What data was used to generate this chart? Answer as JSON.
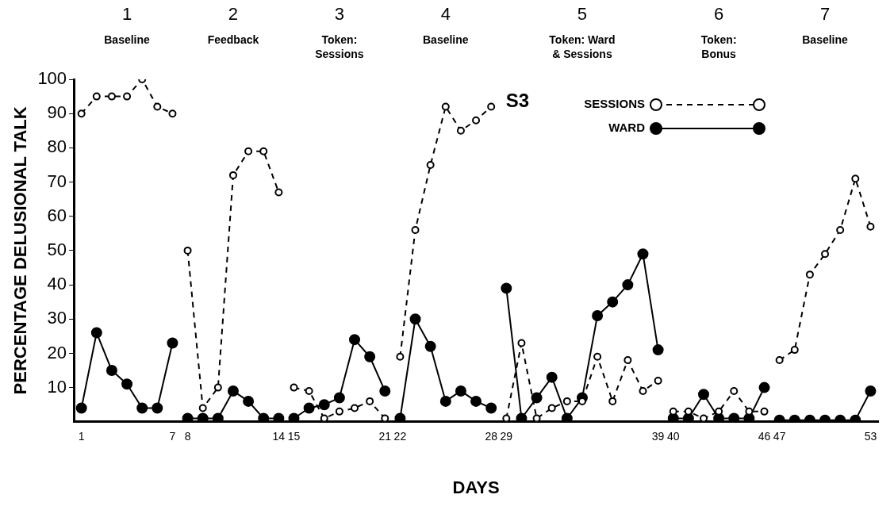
{
  "chart_data": {
    "type": "line",
    "xlabel": "DAYS",
    "ylabel": "PERCENTAGE DELUSIONAL TALK",
    "annotations": [
      "1\nBaseline",
      "2\nFeedback",
      "3\nToken:\nSessions",
      "4\nBaseline",
      "5\nToken: Ward\n& Sessions",
      "6\nToken:\nBonus",
      "7\nBaseline",
      "S3"
    ],
    "xlim": [
      0.5,
      53.5
    ],
    "xticks": [
      1,
      7,
      8,
      14,
      15,
      21,
      22,
      28,
      29,
      39,
      40,
      46,
      47,
      53
    ],
    "ylim": [
      0,
      100
    ],
    "yticks": [
      10,
      20,
      30,
      40,
      50,
      60,
      70,
      80,
      90,
      100
    ],
    "grid": false,
    "legend": "top right",
    "marker": "circle",
    "series": [
      {
        "name": "SESSIONS",
        "color": "#000000",
        "line_style": "dashed",
        "x": [
          1,
          2,
          3,
          4,
          5,
          6,
          7
        ],
        "values": [
          90,
          95,
          95,
          95,
          100,
          92,
          90
        ]
      },
      {
        "name": "WARD",
        "color": "#000000",
        "line_style": "solid",
        "x": [
          1,
          2,
          3,
          4,
          5,
          6,
          7
        ],
        "values": [
          4,
          26,
          15,
          11,
          4,
          4,
          23
        ]
      },
      {
        "color": "#000000",
        "line_style": "dashed",
        "x": [
          8,
          9,
          10,
          11,
          12,
          13,
          14
        ],
        "values": [
          50,
          4,
          10,
          72,
          79,
          79,
          67
        ]
      },
      {
        "color": "#000000",
        "line_style": "solid",
        "x": [
          8,
          9,
          10,
          11,
          12,
          13,
          14
        ],
        "values": [
          1,
          1,
          1,
          9,
          6,
          1,
          1
        ]
      },
      {
        "color": "#000000",
        "line_style": "dashed",
        "x": [
          15,
          16,
          17,
          18,
          19,
          20,
          21
        ],
        "values": [
          10,
          9,
          1,
          3,
          4,
          6,
          1
        ]
      },
      {
        "color": "#000000",
        "line_style": "solid",
        "x": [
          15,
          16,
          17,
          18,
          19,
          20,
          21
        ],
        "values": [
          1,
          4,
          5,
          7,
          24,
          19,
          9
        ]
      },
      {
        "color": "#000000",
        "line_style": "dashed",
        "x": [
          22,
          23,
          24,
          25,
          26,
          27,
          28
        ],
        "values": [
          19,
          56,
          75,
          92,
          85,
          88,
          92
        ]
      },
      {
        "color": "#000000",
        "line_style": "solid",
        "x": [
          22,
          23,
          24,
          25,
          26,
          27,
          28
        ],
        "values": [
          1,
          30,
          22,
          6,
          9,
          6,
          4
        ]
      },
      {
        "color": "#000000",
        "line_style": "dashed",
        "x": [
          29,
          30,
          31,
          32,
          33,
          34,
          35,
          36,
          37,
          38,
          39
        ],
        "values": [
          1,
          23,
          1,
          4,
          6,
          6,
          19,
          6,
          18,
          9,
          12
        ]
      },
      {
        "color": "#000000",
        "line_style": "solid",
        "x": [
          29,
          30,
          31,
          32,
          33,
          34,
          35,
          36,
          37,
          38,
          39
        ],
        "values": [
          39,
          1,
          7,
          13,
          1,
          7,
          31,
          35,
          40,
          49,
          21
        ]
      },
      {
        "color": "#000000",
        "line_style": "dashed",
        "x": [
          40,
          41,
          42,
          43,
          44,
          45,
          46
        ],
        "values": [
          3,
          3,
          1,
          3,
          9,
          3,
          3
        ]
      },
      {
        "color": "#000000",
        "line_style": "solid",
        "x": [
          40,
          41,
          42,
          43,
          44,
          45,
          46
        ],
        "values": [
          1,
          1,
          8,
          1,
          1,
          1,
          10
        ]
      },
      {
        "color": "#000000",
        "line_style": "dashed",
        "x": [
          47,
          48,
          49,
          50,
          51,
          52,
          53
        ],
        "values": [
          18,
          21,
          43,
          49,
          56,
          71,
          57
        ]
      },
      {
        "color": "#000000",
        "line_style": "solid",
        "x": [
          47,
          48,
          49,
          50,
          51,
          52,
          53
        ],
        "values": [
          0.5,
          0.5,
          0.5,
          0.5,
          0.5,
          0.5,
          9
        ]
      }
    ]
  }
}
